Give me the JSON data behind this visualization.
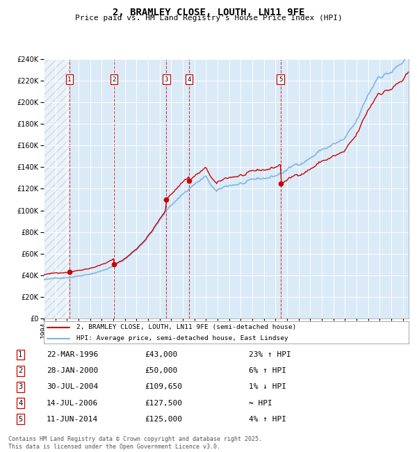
{
  "title": "2, BRAMLEY CLOSE, LOUTH, LN11 9FE",
  "subtitle": "Price paid vs. HM Land Registry's House Price Index (HPI)",
  "legend_property": "2, BRAMLEY CLOSE, LOUTH, LN11 9FE (semi-detached house)",
  "legend_hpi": "HPI: Average price, semi-detached house, East Lindsey",
  "footer": "Contains HM Land Registry data © Crown copyright and database right 2025.\nThis data is licensed under the Open Government Licence v3.0.",
  "sales": [
    {
      "num": 1,
      "date": "22-MAR-1996",
      "date_dec": 1996.22,
      "price": 43000,
      "hpi_rel": "23% ↑ HPI"
    },
    {
      "num": 2,
      "date": "28-JAN-2000",
      "date_dec": 2000.07,
      "price": 50000,
      "hpi_rel": "6% ↑ HPI"
    },
    {
      "num": 3,
      "date": "30-JUL-2004",
      "date_dec": 2004.58,
      "price": 109650,
      "hpi_rel": "1% ↓ HPI"
    },
    {
      "num": 4,
      "date": "14-JUL-2006",
      "date_dec": 2006.54,
      "price": 127500,
      "hpi_rel": "≈ HPI"
    },
    {
      "num": 5,
      "date": "11-JUN-2014",
      "date_dec": 2014.44,
      "price": 125000,
      "hpi_rel": "4% ↑ HPI"
    }
  ],
  "ylim": [
    0,
    240000
  ],
  "xlim_start": 1994.0,
  "xlim_end": 2025.5,
  "hpi_color": "#7db3e0",
  "property_color": "#cc0000",
  "plot_bg_color": "#daeaf7",
  "grid_color": "#ffffff",
  "dashed_line_color": "#cc0000",
  "title_fontsize": 10,
  "subtitle_fontsize": 8,
  "axis_fontsize": 7,
  "table_fontsize": 8,
  "footer_fontsize": 6
}
